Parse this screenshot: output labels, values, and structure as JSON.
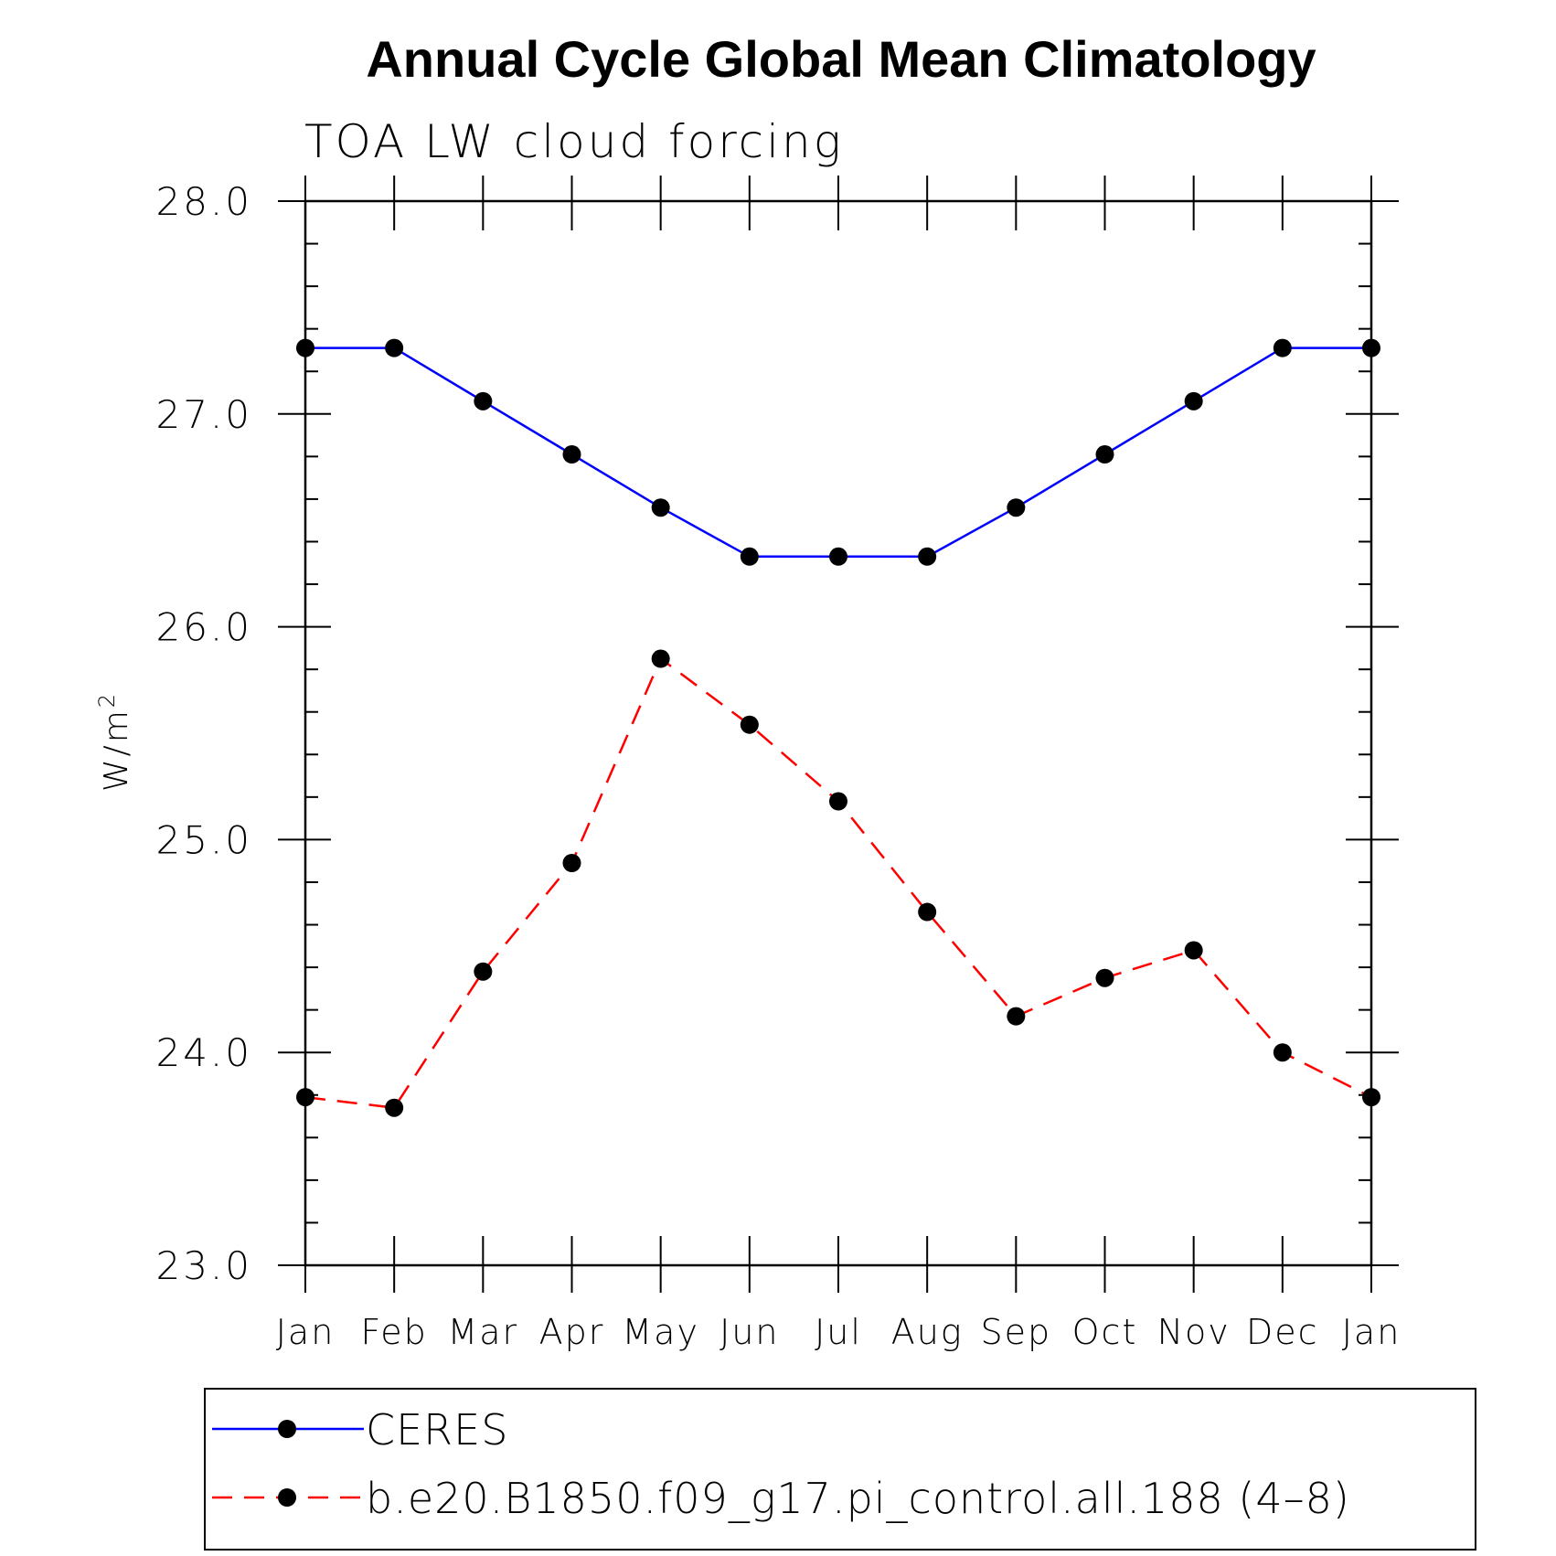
{
  "chart_data": {
    "type": "line",
    "title": "Annual Cycle Global Mean Climatology",
    "subtitle": "TOA LW cloud forcing",
    "ylabel_base": "W/m",
    "ylabel_sup": "2",
    "xlabel": "",
    "categories": [
      "Jan",
      "Feb",
      "Mar",
      "Apr",
      "May",
      "Jun",
      "Jul",
      "Aug",
      "Sep",
      "Oct",
      "Nov",
      "Dec",
      "Jan"
    ],
    "ylim": [
      23.0,
      28.0
    ],
    "yticks": [
      "23.0",
      "24.0",
      "25.0",
      "26.0",
      "27.0",
      "28.0"
    ],
    "grid": false,
    "legend_position": "bottom",
    "series": [
      {
        "name": "CERES",
        "color": "#0000ff",
        "line_style": "solid",
        "marker": "filled-circle",
        "values": [
          27.31,
          27.31,
          27.06,
          26.81,
          26.56,
          26.33,
          26.33,
          26.33,
          26.56,
          26.81,
          27.06,
          27.31,
          27.31
        ]
      },
      {
        "name": "b.e20.B1850.f09_g17.pi_control.all.188 (4–8)",
        "color": "#ff0000",
        "line_style": "dashed",
        "marker": "filled-circle",
        "values": [
          23.79,
          23.74,
          24.38,
          24.89,
          25.85,
          25.54,
          25.18,
          24.66,
          24.17,
          24.35,
          24.48,
          24.0,
          23.79
        ]
      }
    ]
  }
}
